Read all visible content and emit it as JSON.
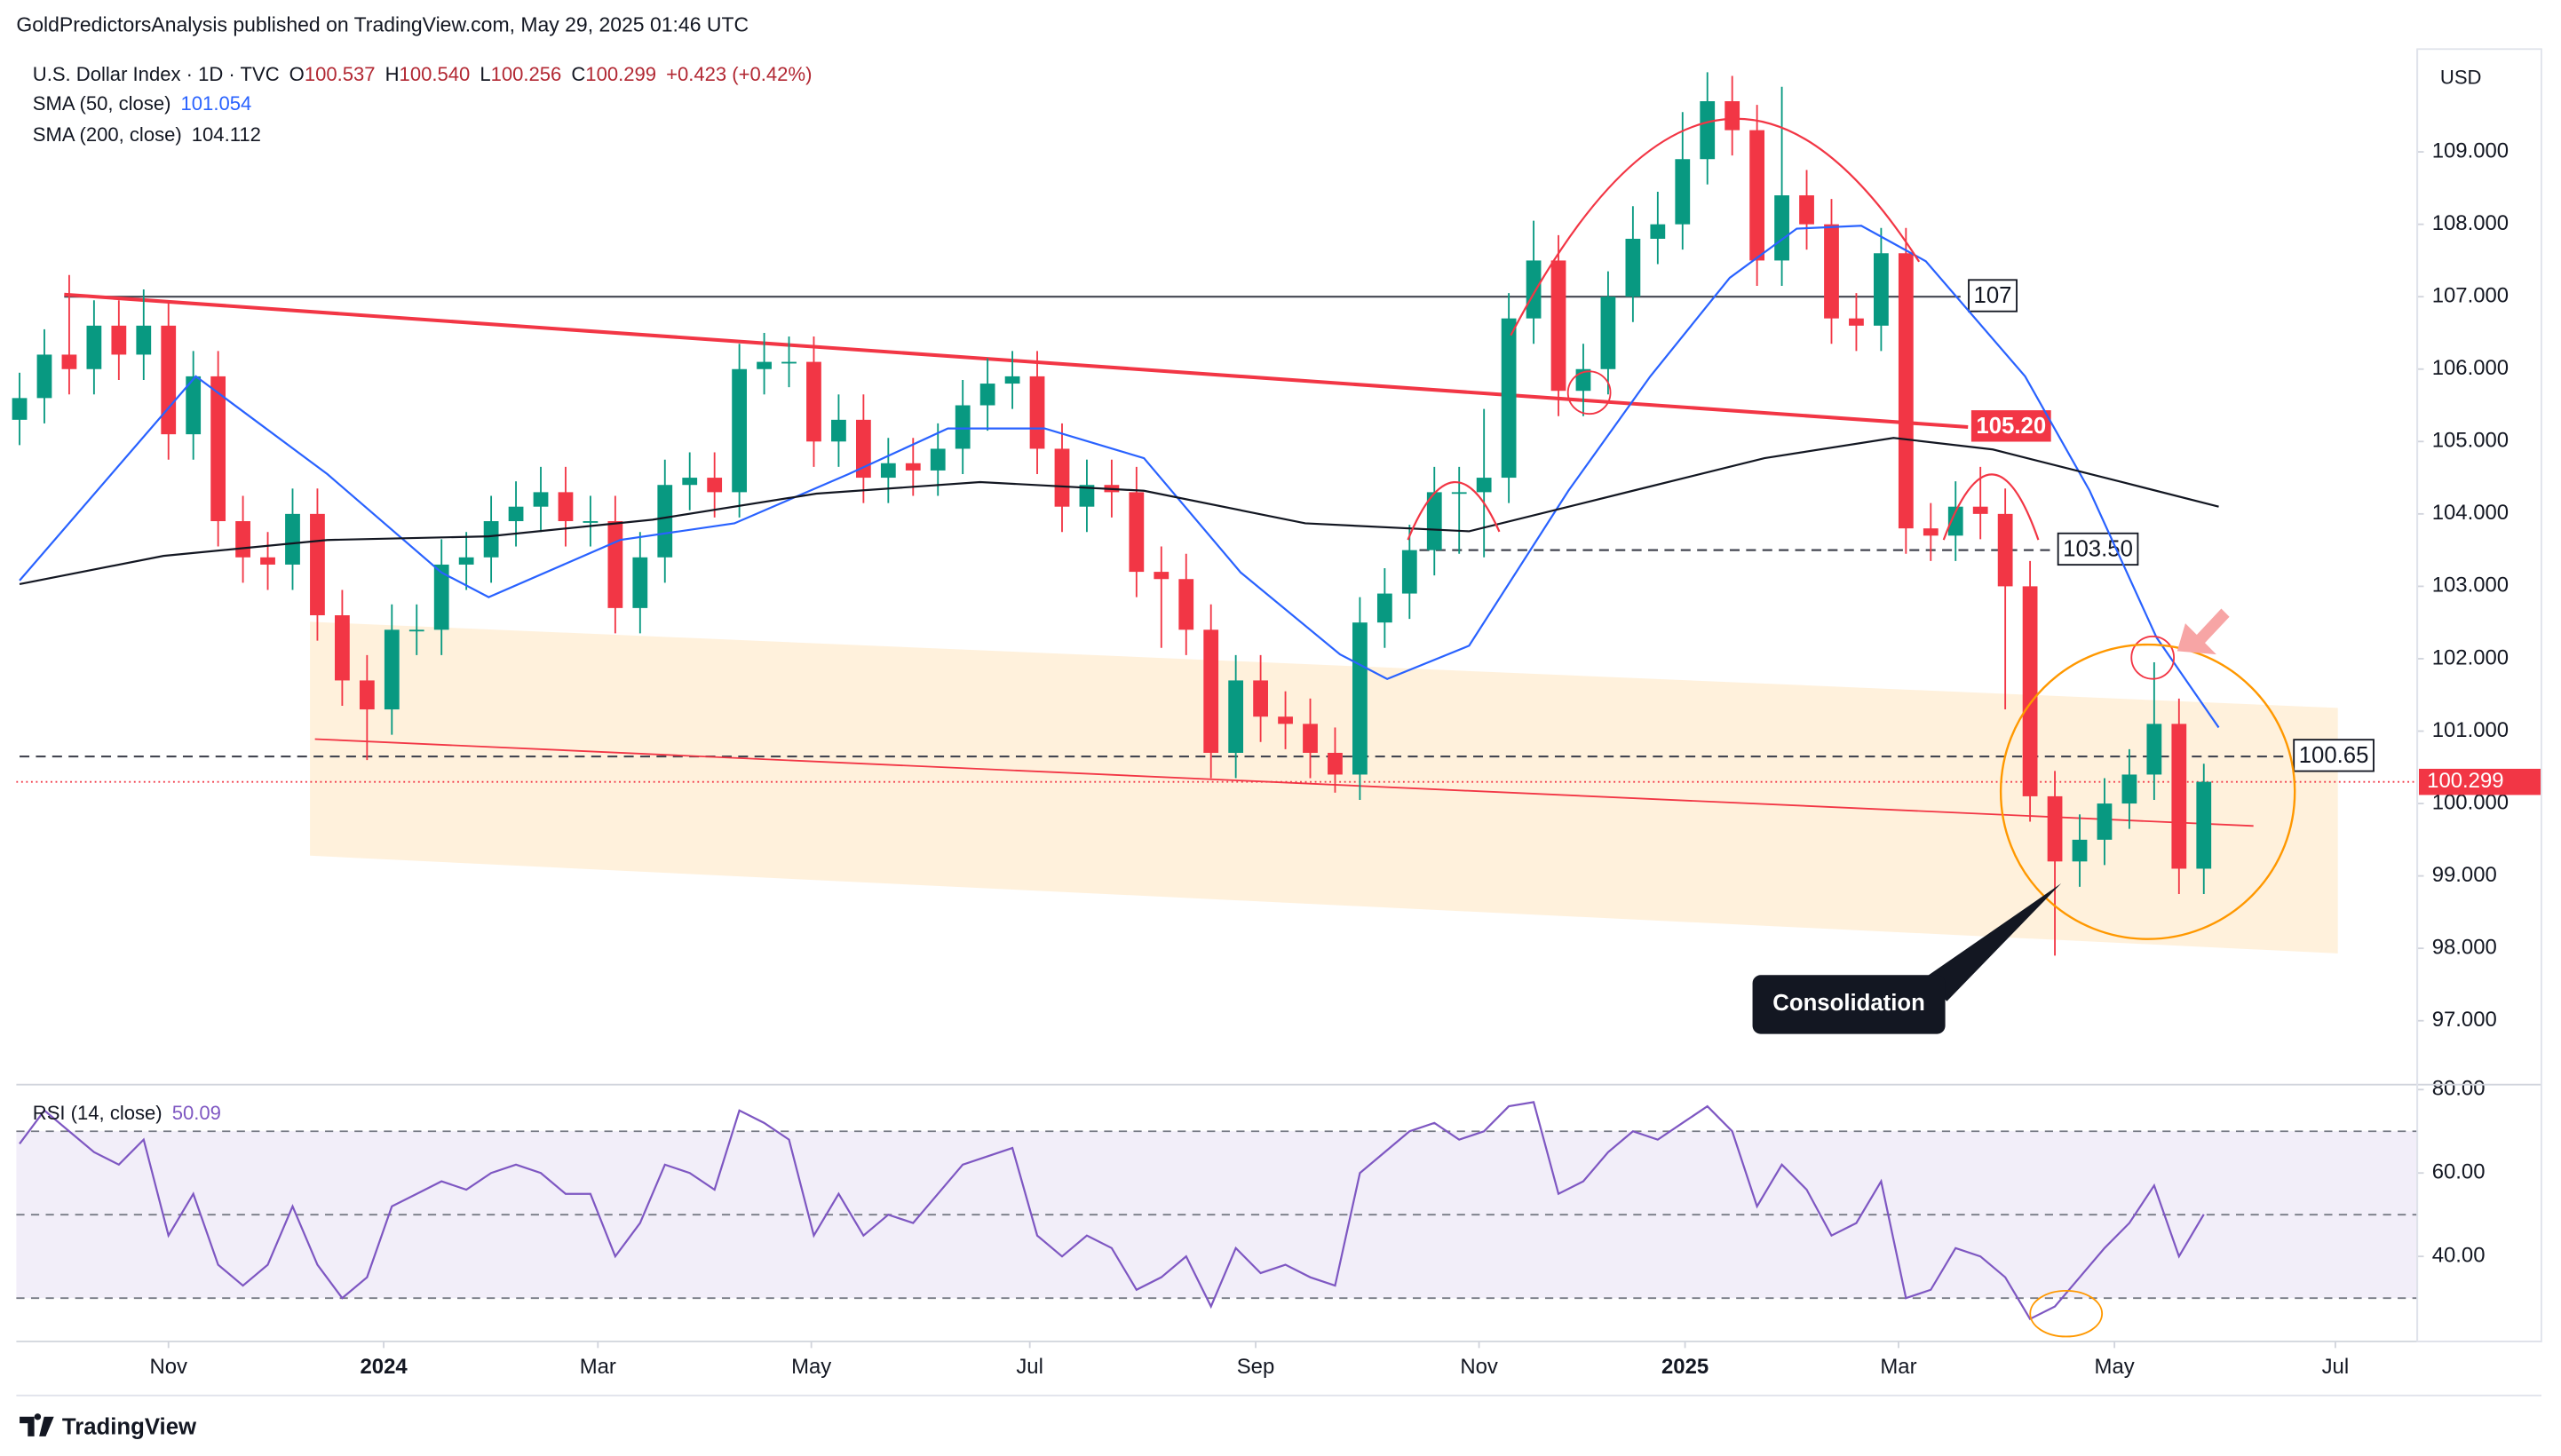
{
  "header": {
    "publisher": "GoldPredictorsAnalysis published on TradingView.com, May 29, 2025 01:46 UTC",
    "currency": "USD",
    "footer": "TradingView"
  },
  "chart_data": [
    {
      "type": "candlestick",
      "title": "U.S. Dollar Index · 1D · TVC",
      "ohlc": [
        {
          "key": "O",
          "value": "100.537"
        },
        {
          "key": "H",
          "value": "100.540"
        },
        {
          "key": "L",
          "value": "100.256"
        },
        {
          "key": "C",
          "value": "100.299"
        }
      ],
      "change": "+0.423 (+0.42%)",
      "colors": {
        "up": "#089981",
        "down": "#f23645"
      },
      "categories": [
        null,
        null,
        null,
        null,
        null,
        null,
        null,
        null,
        null,
        null,
        null,
        null,
        null,
        null,
        null,
        null,
        null,
        null,
        null,
        null,
        null,
        null,
        null,
        null,
        null,
        null,
        null,
        null,
        null,
        null,
        null,
        null,
        null,
        null,
        null,
        null,
        null,
        null,
        null,
        null,
        null,
        null,
        null,
        null,
        null,
        null,
        null,
        null,
        null,
        null,
        null,
        null,
        null,
        null,
        null,
        null,
        null,
        null,
        null,
        null,
        null,
        null,
        null,
        null,
        null,
        null,
        null,
        null,
        null,
        null,
        null,
        null,
        null,
        null,
        null,
        null,
        null,
        null,
        null,
        null,
        null,
        null,
        null,
        null,
        null,
        null,
        null,
        null,
        null
      ],
      "candles": {
        "open": [
          105.3,
          105.6,
          106.2,
          106.0,
          106.6,
          106.2,
          106.6,
          105.1,
          105.9,
          103.9,
          103.4,
          103.3,
          104.0,
          102.6,
          101.7,
          101.3,
          102.4,
          102.4,
          103.3,
          103.4,
          103.9,
          104.1,
          104.3,
          103.9,
          103.9,
          102.7,
          103.4,
          104.4,
          104.5,
          104.3,
          106.0,
          106.1,
          106.1,
          105.0,
          105.3,
          104.5,
          104.7,
          104.6,
          104.9,
          105.5,
          105.8,
          105.9,
          104.9,
          104.1,
          104.4,
          104.3,
          103.2,
          103.1,
          102.4,
          100.7,
          101.7,
          101.2,
          101.1,
          100.7,
          100.4,
          102.5,
          102.9,
          103.5,
          104.3,
          104.3,
          104.5,
          106.7,
          107.5,
          105.7,
          106.0,
          107.0,
          107.8,
          108.0,
          108.9,
          109.7,
          109.3,
          107.5,
          108.4,
          108.0,
          106.7,
          106.6,
          107.6,
          103.8,
          103.7,
          104.1,
          104.0,
          103.0,
          100.1,
          99.2,
          99.5,
          100.0,
          100.4,
          101.1,
          99.1
        ],
        "high": [
          105.95,
          106.55,
          107.3,
          106.95,
          106.95,
          107.1,
          106.95,
          106.25,
          106.25,
          104.25,
          103.75,
          104.35,
          104.35,
          102.95,
          102.05,
          102.75,
          102.75,
          103.65,
          103.75,
          104.25,
          104.45,
          104.65,
          104.65,
          104.25,
          104.25,
          103.75,
          104.75,
          104.85,
          104.85,
          106.35,
          106.5,
          106.45,
          106.45,
          105.65,
          105.65,
          105.05,
          105.05,
          105.25,
          105.85,
          106.15,
          106.25,
          106.25,
          105.25,
          104.75,
          104.75,
          104.65,
          103.55,
          103.45,
          102.75,
          102.05,
          102.05,
          101.55,
          101.45,
          101.05,
          102.85,
          103.25,
          103.85,
          104.65,
          104.65,
          105.45,
          107.05,
          108.05,
          107.85,
          106.35,
          107.35,
          108.25,
          108.45,
          109.55,
          110.1,
          110.05,
          109.65,
          109.9,
          108.75,
          108.35,
          107.05,
          107.95,
          107.95,
          104.15,
          104.45,
          104.65,
          104.35,
          103.35,
          100.45,
          99.85,
          100.35,
          100.75,
          101.95,
          101.45,
          100.55
        ],
        "low": [
          104.95,
          105.25,
          105.65,
          105.65,
          105.85,
          105.85,
          104.75,
          104.75,
          103.55,
          103.05,
          102.95,
          102.95,
          102.25,
          101.35,
          100.6,
          100.95,
          102.05,
          102.05,
          102.95,
          103.05,
          103.55,
          103.75,
          103.55,
          103.55,
          102.35,
          102.35,
          103.05,
          104.05,
          103.95,
          103.95,
          105.65,
          105.75,
          104.65,
          104.65,
          104.15,
          104.15,
          104.25,
          104.25,
          104.55,
          105.15,
          105.45,
          104.55,
          103.75,
          103.75,
          103.95,
          102.85,
          102.15,
          102.05,
          100.35,
          100.35,
          100.85,
          100.75,
          100.35,
          100.15,
          100.05,
          102.15,
          102.55,
          103.15,
          103.45,
          103.4,
          104.15,
          106.35,
          105.35,
          105.35,
          105.65,
          106.65,
          107.45,
          107.65,
          108.55,
          108.95,
          107.15,
          107.15,
          107.65,
          106.35,
          106.25,
          106.25,
          103.45,
          103.35,
          103.35,
          103.65,
          101.3,
          99.75,
          97.9,
          98.85,
          99.15,
          99.65,
          100.05,
          98.75,
          98.75
        ],
        "close": [
          105.6,
          106.2,
          106.0,
          106.6,
          106.2,
          106.6,
          105.1,
          105.9,
          103.9,
          103.4,
          103.3,
          104.0,
          102.6,
          101.7,
          101.3,
          102.4,
          102.4,
          103.3,
          103.4,
          103.9,
          104.1,
          104.3,
          103.9,
          103.9,
          102.7,
          103.4,
          104.4,
          104.5,
          104.3,
          106.0,
          106.1,
          106.1,
          105.0,
          105.3,
          104.5,
          104.7,
          104.6,
          104.9,
          105.5,
          105.8,
          105.9,
          104.9,
          104.1,
          104.4,
          104.3,
          103.2,
          103.1,
          102.4,
          100.7,
          101.7,
          101.2,
          101.1,
          100.7,
          100.4,
          102.5,
          102.9,
          103.5,
          104.3,
          104.3,
          104.5,
          106.7,
          107.5,
          105.7,
          106.0,
          107.0,
          107.8,
          108.0,
          108.9,
          109.7,
          109.3,
          107.5,
          108.4,
          108.0,
          106.7,
          106.6,
          107.6,
          103.8,
          103.7,
          104.1,
          104.0,
          103.0,
          100.1,
          99.2,
          99.5,
          100.0,
          100.4,
          101.1,
          99.1,
          100.3
        ]
      },
      "series": [
        {
          "name": "SMA (50, close)",
          "last": 101.054,
          "color": "#2962ff",
          "x": [
            0,
            7.1,
            12.4,
            17.0,
            18.9,
            24.2,
            28.8,
            33.4,
            37.4,
            41.3,
            45.3,
            49.2,
            53.2,
            55.1,
            58.4,
            62.4,
            65.7,
            68.9,
            71.6,
            74.2,
            76.8,
            80.8,
            83.4,
            86.1,
            88.6
          ],
          "values": [
            103.08,
            105.9,
            104.55,
            103.19,
            102.85,
            103.64,
            103.87,
            104.55,
            105.18,
            105.18,
            104.77,
            103.19,
            102.06,
            101.72,
            102.18,
            104.32,
            105.9,
            107.26,
            107.94,
            107.98,
            107.49,
            105.9,
            104.32,
            102.29,
            101.05
          ]
        },
        {
          "name": "SMA (200, close)",
          "last": 104.112,
          "color": "#131722",
          "x": [
            0,
            5.8,
            12.4,
            18.9,
            25.5,
            32.1,
            38.7,
            45.3,
            51.8,
            58.4,
            65.0,
            70.3,
            75.5,
            79.5,
            84.7,
            88.6
          ],
          "values": [
            103.03,
            103.42,
            103.64,
            103.69,
            103.92,
            104.28,
            104.44,
            104.32,
            103.87,
            103.76,
            104.32,
            104.77,
            105.05,
            104.89,
            104.44,
            104.1
          ]
        }
      ],
      "xlim": [
        -0.13,
        96.6
      ],
      "ylim": [
        96.14,
        110.42
      ],
      "yticks": [
        {
          "value": 97,
          "label": "97.000"
        },
        {
          "value": 98,
          "label": "98.000"
        },
        {
          "value": 99,
          "label": "99.000"
        },
        {
          "value": 100,
          "label": "100.000"
        },
        {
          "value": 101,
          "label": "101.000"
        },
        {
          "value": 102,
          "label": "102.000"
        },
        {
          "value": 103,
          "label": "103.000"
        },
        {
          "value": 104,
          "label": "104.000"
        },
        {
          "value": 105,
          "label": "105.000"
        },
        {
          "value": 106,
          "label": "106.000"
        },
        {
          "value": 107,
          "label": "107.000"
        },
        {
          "value": 108,
          "label": "108.000"
        },
        {
          "value": 109,
          "label": "109.000"
        }
      ],
      "grid": false,
      "levels": [
        {
          "value": 107,
          "label": "107",
          "x": [
            1.8,
            78.2
          ],
          "style": "solid",
          "color": "#434651"
        },
        {
          "value": 103.5,
          "label": "103.50",
          "x": [
            56.4,
            81.8
          ],
          "style": "dashed",
          "color": "#434651"
        },
        {
          "value": 100.65,
          "label": "100.65",
          "x": [
            0,
            91.3
          ],
          "style": "dashed",
          "color": "#434651"
        }
      ],
      "trendlines": [
        {
          "x": [
            1.8,
            78.5
          ],
          "values": [
            107.03,
            105.2
          ],
          "label": "105.20",
          "color": "#f23645",
          "width": 2.2
        },
        {
          "x": [
            11.9,
            90
          ],
          "values": [
            100.89,
            99.69
          ],
          "color": "#f23645",
          "width": 1
        }
      ],
      "channel": {
        "x": [
          11.7,
          93.4
        ],
        "upper": [
          102.51,
          101.32
        ],
        "lower": [
          99.28,
          97.93
        ],
        "color": "#ffe0b2"
      },
      "last_price": 100.299,
      "last_price_color": "#f23645",
      "annotation": "Consolidation"
    },
    {
      "type": "line",
      "title": "RSI (14, close)",
      "last": 50.09,
      "color": "#7e57c2",
      "categories": [
        null,
        null,
        null,
        null,
        null,
        null,
        null,
        null,
        null,
        null,
        null,
        null,
        null,
        null,
        null,
        null,
        null,
        null,
        null,
        null,
        null,
        null,
        null,
        null,
        null,
        null,
        null,
        null,
        null,
        null,
        null,
        null,
        null,
        null,
        null,
        null,
        null,
        null,
        null,
        null,
        null,
        null,
        null,
        null,
        null,
        null,
        null,
        null,
        null,
        null,
        null,
        null,
        null,
        null,
        null,
        null,
        null,
        null,
        null,
        null,
        null,
        null,
        null,
        null,
        null,
        null,
        null,
        null,
        null,
        null,
        null,
        null,
        null,
        null,
        null,
        null,
        null,
        null,
        null,
        null,
        null,
        null,
        null,
        null,
        null,
        null,
        null,
        null,
        null
      ],
      "values": [
        67,
        75,
        70,
        65,
        62,
        68,
        45,
        55,
        38,
        33,
        38,
        52,
        38,
        30,
        35,
        52,
        55,
        58,
        56,
        60,
        62,
        60,
        55,
        55,
        40,
        48,
        62,
        60,
        56,
        75,
        72,
        68,
        45,
        55,
        45,
        50,
        48,
        55,
        62,
        64,
        66,
        45,
        40,
        45,
        42,
        32,
        35,
        40,
        28,
        42,
        36,
        38,
        35,
        33,
        60,
        65,
        70,
        72,
        68,
        70,
        76,
        77,
        55,
        58,
        65,
        70,
        68,
        72,
        76,
        70,
        52,
        62,
        56,
        45,
        48,
        58,
        30,
        32,
        42,
        40,
        35,
        25,
        28,
        35,
        42,
        48,
        57,
        40,
        50.09
      ],
      "xlim": [
        -0.13,
        96.6
      ],
      "ylim": [
        19.6,
        80.4
      ],
      "yticks": [
        {
          "value": 40,
          "label": "40.00"
        },
        {
          "value": 60,
          "label": "60.00"
        },
        {
          "value": 80,
          "label": "80.00"
        }
      ],
      "levels": [
        70,
        50,
        30
      ],
      "xticks": [
        {
          "value": 6.0,
          "label": "Nov"
        },
        {
          "value": 14.67,
          "label": "2024"
        },
        {
          "value": 23.3,
          "label": "Mar"
        },
        {
          "value": 31.9,
          "label": "May"
        },
        {
          "value": 40.7,
          "label": "Jul"
        },
        {
          "value": 49.8,
          "label": "Sep"
        },
        {
          "value": 58.8,
          "label": "Nov"
        },
        {
          "value": 67.1,
          "label": "2025"
        },
        {
          "value": 75.7,
          "label": "Mar"
        },
        {
          "value": 84.4,
          "label": "May"
        },
        {
          "value": 93.3,
          "label": "Jul"
        }
      ]
    }
  ]
}
